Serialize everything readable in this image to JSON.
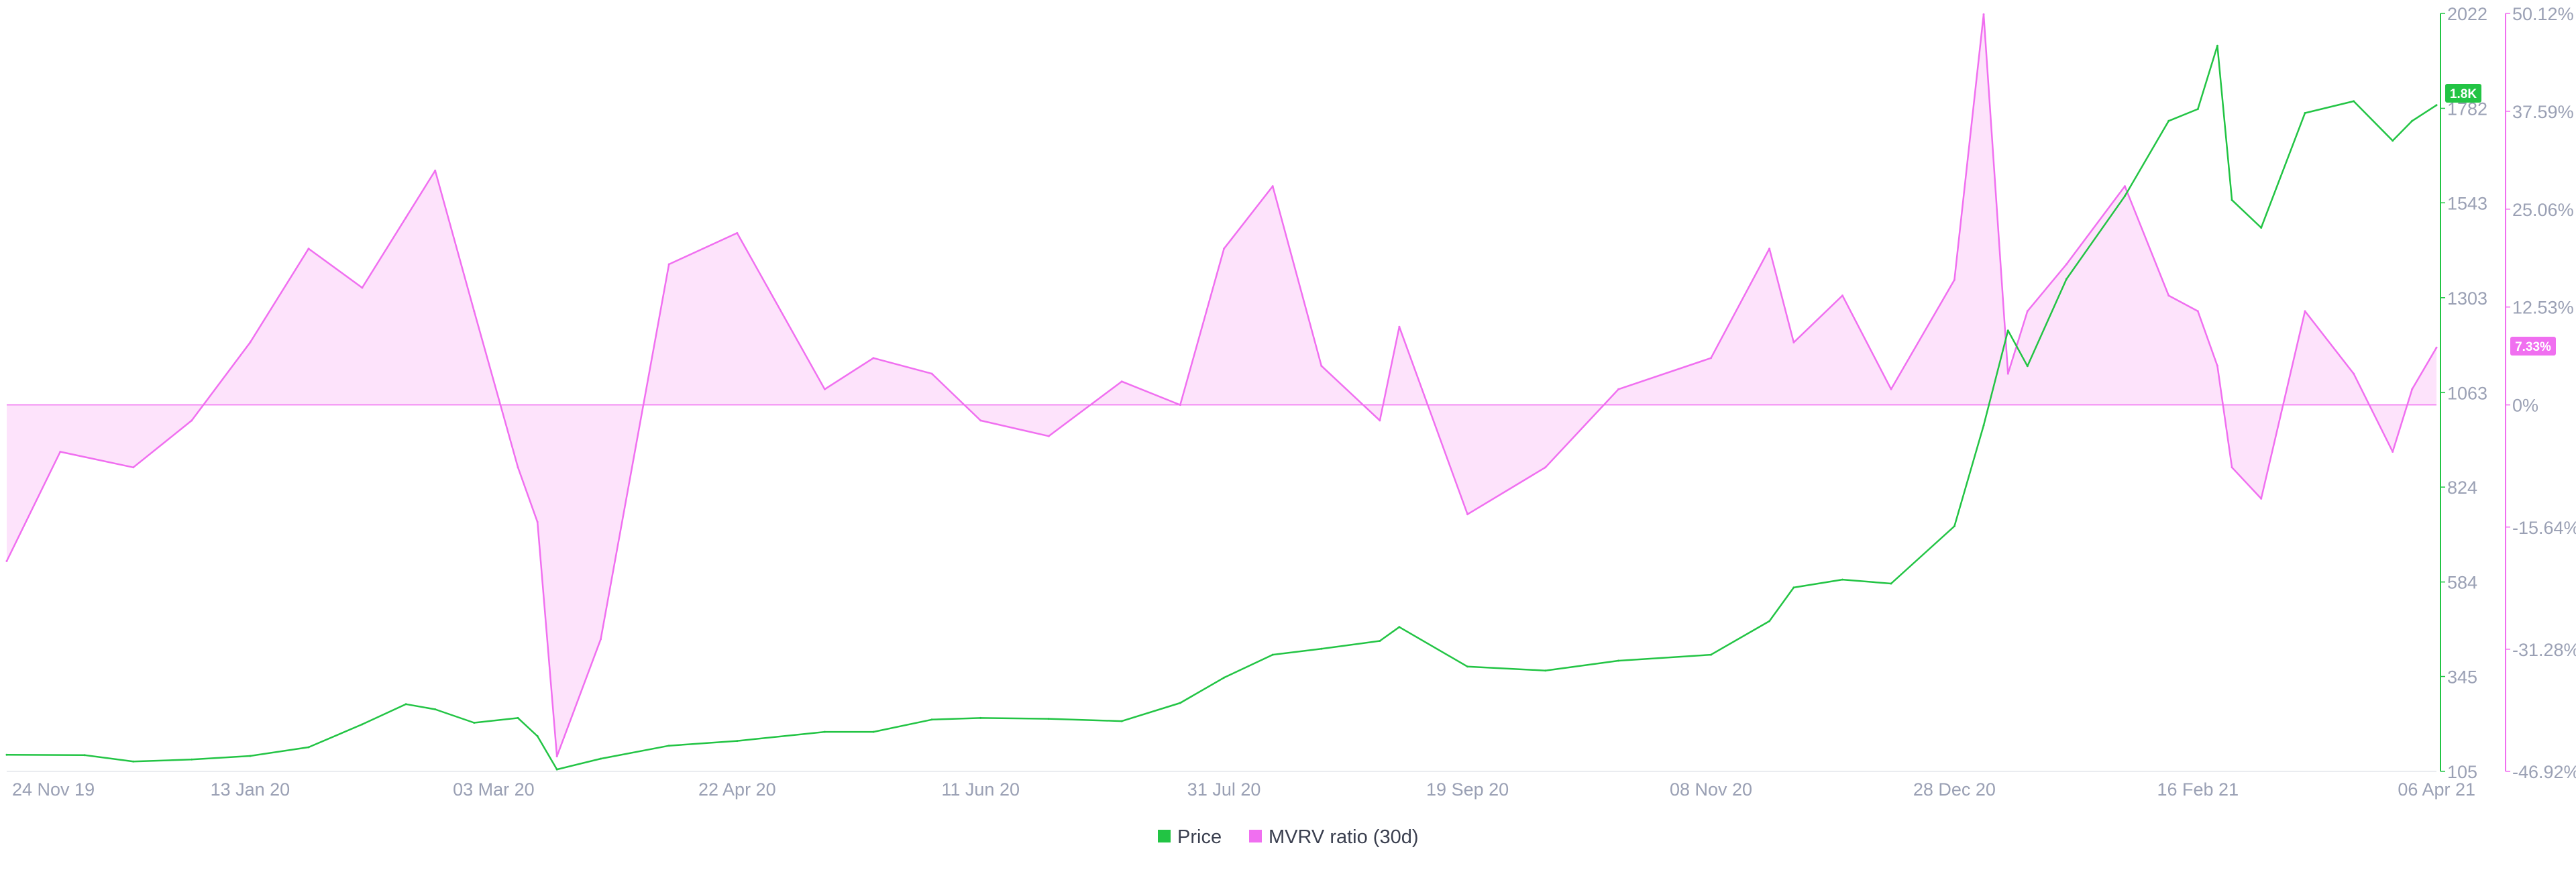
{
  "colors": {
    "price": "#22c444",
    "mvrv": "#f06ff0",
    "mvrv_fill": "#fde3fb",
    "grid_text": "#9aa0b4",
    "background": "#ffffff"
  },
  "legend": [
    {
      "label": "Price",
      "color": "#22c444"
    },
    {
      "label": "MVRV ratio (30d)",
      "color": "#f06ff0"
    }
  ],
  "badges": {
    "price": "1.8K",
    "mvrv": "7.33%"
  },
  "chart_data": {
    "type": "line",
    "x_axis": {
      "type": "date",
      "range": [
        "2019-11-24",
        "2021-04-06"
      ],
      "tick_labels": [
        "24 Nov 19",
        "13 Jan 20",
        "03 Mar 20",
        "22 Apr 20",
        "11 Jun 20",
        "31 Jul 20",
        "19 Sep 20",
        "08 Nov 20",
        "28 Dec 20",
        "16 Feb 21",
        "06 Apr 21"
      ],
      "tick_dates": [
        "2019-11-24",
        "2020-01-13",
        "2020-03-03",
        "2020-04-22",
        "2020-06-11",
        "2020-07-31",
        "2020-09-19",
        "2020-11-08",
        "2020-12-28",
        "2021-02-16",
        "2021-04-06"
      ]
    },
    "y_axes": [
      {
        "id": "price",
        "side": "right",
        "ylim": [
          105,
          2022
        ],
        "tick_labels": [
          "105",
          "345",
          "584",
          "824",
          "1063",
          "1303",
          "1543",
          "1782",
          "2022"
        ],
        "tick_values": [
          105,
          345,
          584,
          824,
          1063,
          1303,
          1543,
          1782,
          2022
        ]
      },
      {
        "id": "mvrv",
        "side": "right",
        "ylim": [
          -46.92,
          50.12
        ],
        "tick_labels": [
          "-46.92%",
          "-31.28%",
          "-15.64%",
          "0%",
          "12.53%",
          "25.06%",
          "37.59%",
          "50.12%"
        ],
        "tick_values": [
          -46.92,
          -31.28,
          -15.64,
          0,
          12.53,
          25.06,
          37.59,
          50.12
        ]
      }
    ],
    "grid": false,
    "legend_position": "bottom-center",
    "series": [
      {
        "name": "Price",
        "axis": "price",
        "x": [
          "2019-11-24",
          "2019-12-10",
          "2019-12-20",
          "2020-01-01",
          "2020-01-13",
          "2020-01-25",
          "2020-02-05",
          "2020-02-14",
          "2020-02-20",
          "2020-02-28",
          "2020-03-08",
          "2020-03-12",
          "2020-03-16",
          "2020-03-25",
          "2020-04-08",
          "2020-04-22",
          "2020-05-10",
          "2020-05-20",
          "2020-06-01",
          "2020-06-11",
          "2020-06-25",
          "2020-07-10",
          "2020-07-22",
          "2020-07-31",
          "2020-08-10",
          "2020-08-20",
          "2020-09-01",
          "2020-09-05",
          "2020-09-19",
          "2020-10-05",
          "2020-10-20",
          "2020-11-08",
          "2020-11-20",
          "2020-11-25",
          "2020-12-05",
          "2020-12-15",
          "2020-12-28",
          "2021-01-03",
          "2021-01-08",
          "2021-01-12",
          "2021-01-20",
          "2021-02-01",
          "2021-02-10",
          "2021-02-16",
          "2021-02-20",
          "2021-02-23",
          "2021-03-01",
          "2021-03-10",
          "2021-03-20",
          "2021-03-28",
          "2021-04-01",
          "2021-04-06"
        ],
        "values": [
          147,
          146,
          130,
          135,
          144,
          166,
          224,
          275,
          262,
          228,
          240,
          194,
          110,
          137,
          170,
          182,
          205,
          205,
          236,
          240,
          238,
          232,
          278,
          342,
          400,
          415,
          435,
          470,
          370,
          360,
          385,
          400,
          485,
          570,
          590,
          580,
          725,
          980,
          1220,
          1130,
          1350,
          1560,
          1750,
          1780,
          1940,
          1550,
          1480,
          1770,
          1800,
          1700,
          1750,
          1790
        ]
      },
      {
        "name": "MVRV ratio (30d)",
        "axis": "mvrv",
        "x": [
          "2019-11-24",
          "2019-12-05",
          "2019-12-20",
          "2020-01-01",
          "2020-01-13",
          "2020-01-25",
          "2020-02-05",
          "2020-02-14",
          "2020-02-20",
          "2020-02-28",
          "2020-03-08",
          "2020-03-12",
          "2020-03-16",
          "2020-03-25",
          "2020-04-08",
          "2020-04-22",
          "2020-05-10",
          "2020-05-20",
          "2020-06-01",
          "2020-06-11",
          "2020-06-25",
          "2020-07-10",
          "2020-07-22",
          "2020-07-31",
          "2020-08-10",
          "2020-08-20",
          "2020-09-01",
          "2020-09-05",
          "2020-09-19",
          "2020-10-05",
          "2020-10-20",
          "2020-11-08",
          "2020-11-20",
          "2020-11-25",
          "2020-12-05",
          "2020-12-15",
          "2020-12-28",
          "2021-01-03",
          "2021-01-08",
          "2021-01-12",
          "2021-01-20",
          "2021-02-01",
          "2021-02-10",
          "2021-02-16",
          "2021-02-20",
          "2021-02-23",
          "2021-03-01",
          "2021-03-10",
          "2021-03-20",
          "2021-03-28",
          "2021-04-01",
          "2021-04-06"
        ],
        "values": [
          -20,
          -6,
          -8,
          -2,
          8,
          20,
          15,
          24,
          30,
          12,
          -8,
          -15,
          -45,
          -30,
          18,
          22,
          2,
          6,
          4,
          -2,
          -4,
          3,
          0,
          20,
          28,
          5,
          -2,
          10,
          -14,
          -8,
          2,
          6,
          20,
          8,
          14,
          2,
          16,
          50,
          4,
          12,
          18,
          28,
          14,
          12,
          5,
          -8,
          -12,
          12,
          4,
          -6,
          2,
          7.33
        ]
      }
    ]
  }
}
